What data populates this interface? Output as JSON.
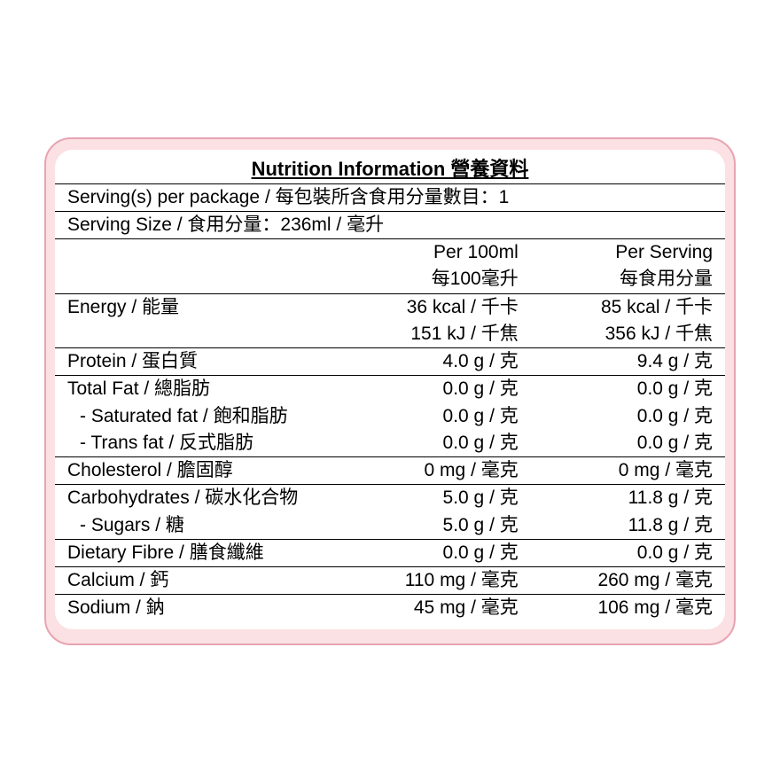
{
  "panel": {
    "bg": "#fbe1e3",
    "border": "#e8a3b2",
    "radius_outer": 30,
    "radius_inner": 20,
    "inner_bg": "#ffffff"
  },
  "title": "Nutrition Information 營養資料",
  "servings_per_package": "Serving(s) per package / 每包裝所含食用分量數目：1",
  "serving_size": "Serving Size / 食用分量：236ml / 毫升",
  "col_headers": {
    "per100_en": "Per 100ml",
    "per100_zh": "每100毫升",
    "perserv_en": "Per Serving",
    "perserv_zh": "每食用分量"
  },
  "rows": {
    "energy": {
      "label": "Energy / 能量",
      "p100_a": "36 kcal / 千卡",
      "pserv_a": "85 kcal / 千卡",
      "p100_b": "151 kJ / 千焦",
      "pserv_b": "356 kJ / 千焦"
    },
    "protein": {
      "label": "Protein / 蛋白質",
      "p100": "4.0 g / 克",
      "pserv": "9.4 g / 克"
    },
    "total_fat": {
      "label": "Total Fat / 總脂肪",
      "p100": "0.0 g / 克",
      "pserv": "0.0 g / 克"
    },
    "sat_fat": {
      "label": "- Saturated fat / 飽和脂肪",
      "p100": "0.0 g / 克",
      "pserv": "0.0 g / 克"
    },
    "trans_fat": {
      "label": "- Trans fat / 反式脂肪",
      "p100": "0.0 g / 克",
      "pserv": "0.0 g / 克"
    },
    "cholesterol": {
      "label": "Cholesterol / 膽固醇",
      "p100": "0 mg / 毫克",
      "pserv": "0 mg / 毫克"
    },
    "carbs": {
      "label": "Carbohydrates / 碳水化合物",
      "p100": "5.0 g / 克",
      "pserv": "11.8 g / 克"
    },
    "sugars": {
      "label": "- Sugars / 糖",
      "p100": "5.0 g / 克",
      "pserv": "11.8 g / 克"
    },
    "fibre": {
      "label": "Dietary Fibre / 膳食纖維",
      "p100": "0.0 g / 克",
      "pserv": "0.0 g / 克"
    },
    "calcium": {
      "label": "Calcium / 鈣",
      "p100": "110 mg / 毫克",
      "pserv": "260 mg / 毫克"
    },
    "sodium": {
      "label": "Sodium / 鈉",
      "p100": "45 mg / 毫克",
      "pserv": "106 mg / 毫克"
    }
  },
  "style": {
    "font_size_cell": 21,
    "font_size_title": 22,
    "text_color": "#000000",
    "rule_color": "#000000",
    "col_widths_pct": [
      42,
      29,
      29
    ]
  }
}
